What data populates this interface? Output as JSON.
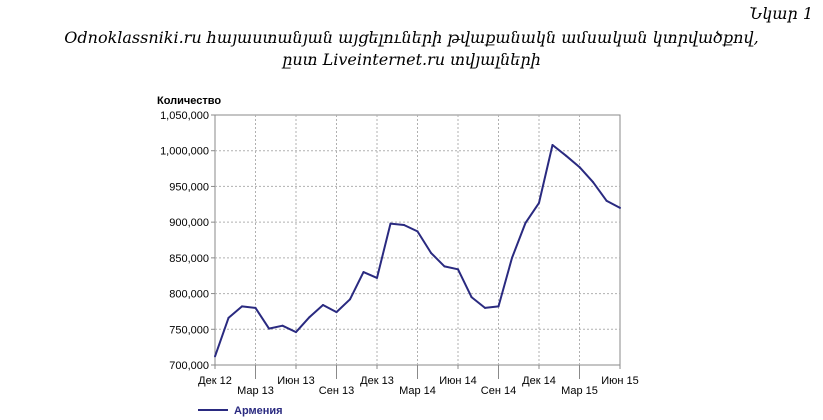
{
  "figure_label": "Նկար 1",
  "caption_line1": "Odnoklassniki.ru հայաստանյան այցելուների թվաքանակն ամսական կտրվածքով,",
  "caption_line2": "ըստ Liveinternet.ru տվյալների",
  "chart_data": {
    "type": "line",
    "title": "",
    "ylabel": "Количество",
    "xlabel": "",
    "ylim": [
      700000,
      1050000
    ],
    "yticks": [
      "1,050,000",
      "1,000,000",
      "950,000",
      "900,000",
      "850,000",
      "800,000",
      "750,000",
      "700,000"
    ],
    "ytick_values": [
      1050000,
      1000000,
      950000,
      900000,
      850000,
      800000,
      750000,
      700000
    ],
    "xticks": [
      {
        "label": "Дек 12",
        "x": 0,
        "row": 1
      },
      {
        "label": "Мар 13",
        "x": 3,
        "row": 2
      },
      {
        "label": "Июн 13",
        "x": 6,
        "row": 1
      },
      {
        "label": "Сен 13",
        "x": 9,
        "row": 2
      },
      {
        "label": "Дек 13",
        "x": 12,
        "row": 1
      },
      {
        "label": "Мар 14",
        "x": 15,
        "row": 2
      },
      {
        "label": "Июн 14",
        "x": 18,
        "row": 1
      },
      {
        "label": "Сен 14",
        "x": 21,
        "row": 2
      },
      {
        "label": "Дек 14",
        "x": 24,
        "row": 1
      },
      {
        "label": "Мар 15",
        "x": 27,
        "row": 2
      },
      {
        "label": "Июн 15",
        "x": 30,
        "row": 1
      }
    ],
    "series": [
      {
        "name": "Армения",
        "color": "#2a2a80",
        "x": [
          0,
          1,
          2,
          3,
          4,
          5,
          6,
          7,
          8,
          9,
          10,
          11,
          12,
          13,
          14,
          15,
          16,
          17,
          18,
          19,
          20,
          21,
          22,
          23,
          24,
          25,
          26,
          27,
          28,
          29,
          30
        ],
        "values": [
          712000,
          766000,
          782000,
          780000,
          751000,
          755000,
          746000,
          767000,
          784000,
          774000,
          792000,
          830000,
          822000,
          898000,
          896000,
          887000,
          857000,
          838000,
          834000,
          795000,
          780000,
          782000,
          850000,
          899000,
          927000,
          1008000,
          993000,
          977000,
          956000,
          930000,
          920000
        ]
      }
    ],
    "grid": true,
    "legend": "bottom-left"
  }
}
